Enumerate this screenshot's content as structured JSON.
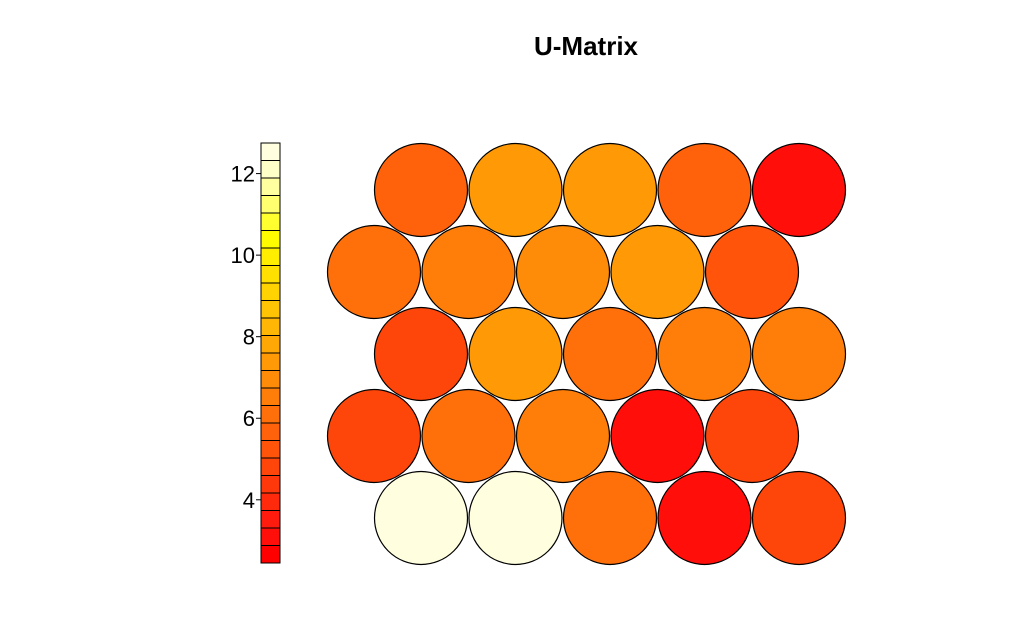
{
  "chart_data": {
    "type": "heatmap",
    "title": "U-Matrix",
    "grid_shape": "hexagonal",
    "rows": 5,
    "cols": 5,
    "odd_row_shifted_left": true,
    "cell_values": [
      [
        5.5,
        7.2,
        7.2,
        5.5,
        3.0
      ],
      [
        6.3,
        6.6,
        7.0,
        7.3,
        5.4
      ],
      [
        4.8,
        7.2,
        6.1,
        6.6,
        6.6
      ],
      [
        5.0,
        6.1,
        6.6,
        3.0,
        4.8
      ],
      [
        12.6,
        12.6,
        6.0,
        3.0,
        4.8
      ]
    ],
    "colorbar": {
      "min": 2.45,
      "max": 12.75,
      "ticks": [
        4,
        6,
        8,
        10,
        12
      ],
      "colormap": "hot-reversed",
      "colors": [
        "#ff0000",
        "#ff0e0a",
        "#ff1c0f",
        "#ff2a0c",
        "#ff380b",
        "#ff460a",
        "#ff540a",
        "#ff620a",
        "#ff700a",
        "#ff7e0a",
        "#ff8c08",
        "#ff9a06",
        "#ffa805",
        "#ffb604",
        "#ffc403",
        "#ffd202",
        "#ffe001",
        "#ffee00",
        "#fffc00",
        "#ffff30",
        "#ffff70",
        "#ffffa0",
        "#ffffc8",
        "#ffffe0"
      ]
    }
  }
}
